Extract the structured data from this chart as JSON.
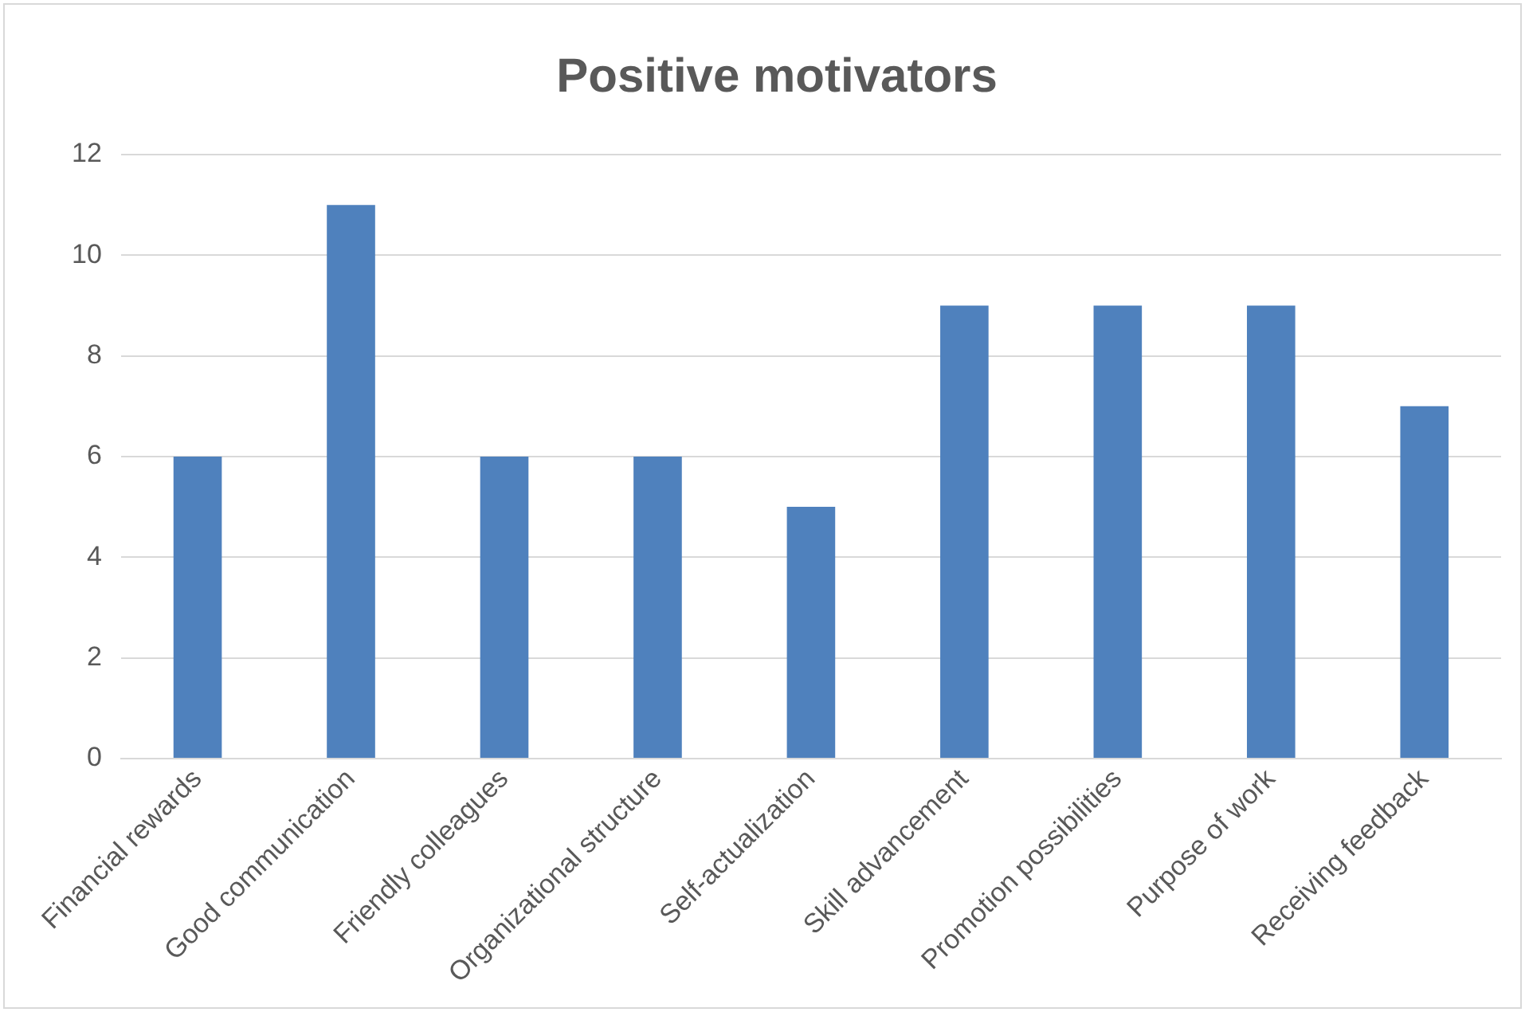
{
  "chart_data": {
    "type": "bar",
    "title": "Positive motivators",
    "categories": [
      "Financial rewards",
      "Good communication",
      "Friendly colleagues",
      "Organizational structure",
      "Self-actualization",
      "Skill advancement",
      "Promotion possibilities",
      "Purpose of work",
      "Receiving feedback"
    ],
    "values": [
      6,
      11,
      6,
      6,
      5,
      9,
      9,
      9,
      7
    ],
    "color": "#4f81bd",
    "ylim": [
      0,
      12
    ],
    "yticks": [
      0,
      2,
      4,
      6,
      8,
      10,
      12
    ],
    "grid": "y",
    "legend": false
  }
}
